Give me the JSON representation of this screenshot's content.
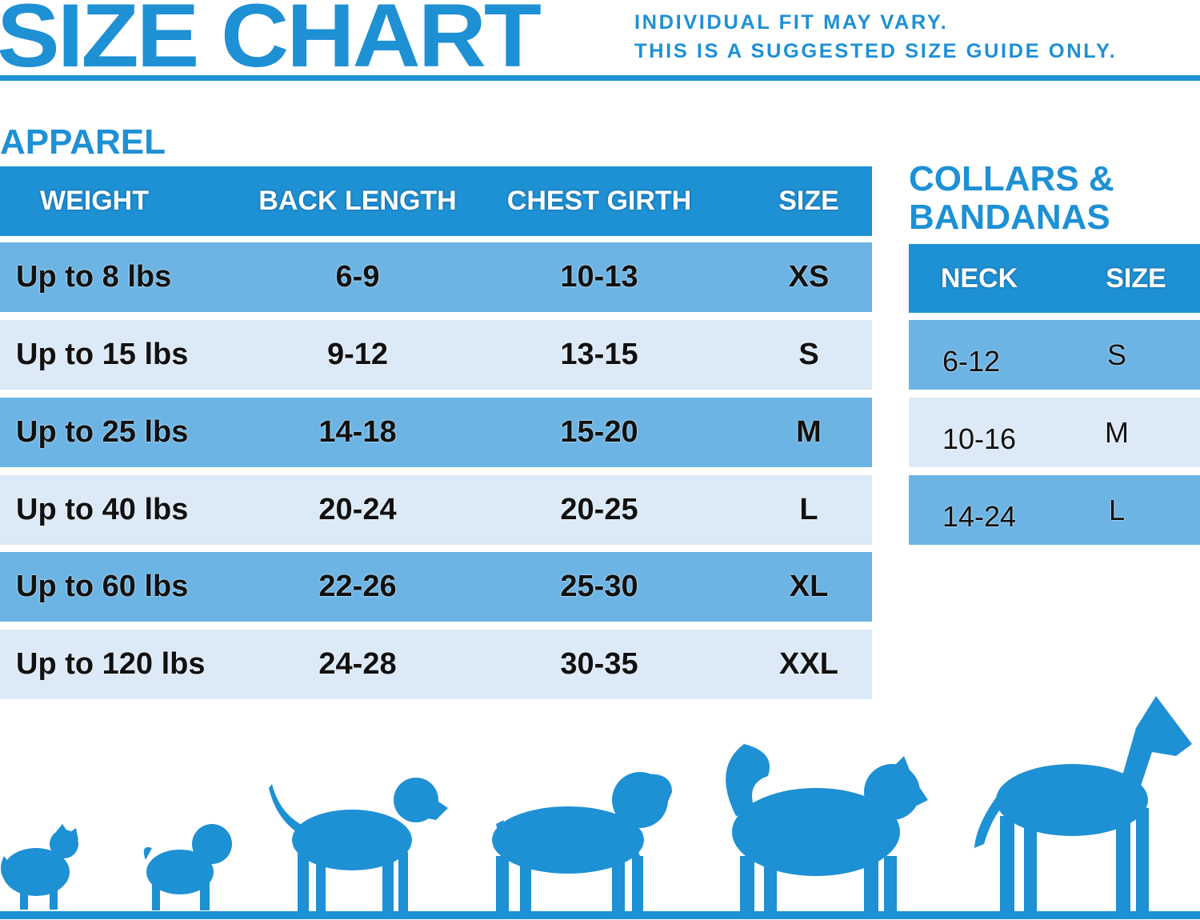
{
  "header": {
    "title": "SIZE CHART",
    "disclaimer_line1": "INDIVIDUAL FIT MAY VARY.",
    "disclaimer_line2": "THIS IS A SUGGESTED SIZE GUIDE ONLY."
  },
  "apparel": {
    "title": "APPAREL",
    "columns": [
      "WEIGHT",
      "BACK LENGTH",
      "CHEST GIRTH",
      "SIZE"
    ],
    "rows": [
      [
        "Up to 8 lbs",
        "6-9",
        "10-13",
        "XS"
      ],
      [
        "Up to 15 lbs",
        "9-12",
        "13-15",
        "S"
      ],
      [
        "Up to 25 lbs",
        "14-18",
        "15-20",
        "M"
      ],
      [
        "Up to 40 lbs",
        "20-24",
        "20-25",
        "L"
      ],
      [
        "Up to 60 lbs",
        "22-26",
        "25-30",
        "XL"
      ],
      [
        "Up to 120 lbs",
        "24-28",
        "30-35",
        "XXL"
      ]
    ]
  },
  "collars": {
    "title_line1": "COLLARS &",
    "title_line2": "BANDANAS",
    "columns": [
      "NECK",
      "SIZE"
    ],
    "rows": [
      [
        "6-12",
        "S"
      ],
      [
        "10-16",
        "M"
      ],
      [
        "14-24",
        "L"
      ]
    ]
  },
  "colors": {
    "brand_blue": "#1e90d4",
    "row_dark": "#6cb4e4",
    "row_light": "#dce9f6"
  },
  "illustration": {
    "icons": [
      "pomeranian-silhouette",
      "pug-silhouette",
      "beagle-silhouette",
      "spaniel-silhouette",
      "husky-silhouette",
      "great-dane-silhouette"
    ]
  }
}
